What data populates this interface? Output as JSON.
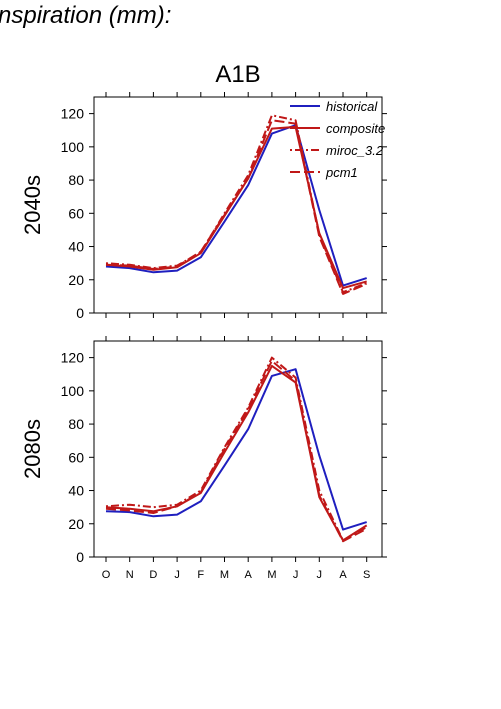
{
  "figure_title": "nspiration (mm):",
  "chart_data": {
    "type": "line",
    "title": "A1B",
    "categories": [
      "O",
      "N",
      "D",
      "J",
      "F",
      "M",
      "A",
      "M",
      "J",
      "J",
      "A",
      "S"
    ],
    "ylim": [
      0,
      130
    ],
    "yticks": [
      0,
      20,
      40,
      60,
      80,
      100,
      120
    ],
    "legend": {
      "placement": "top-right",
      "entries": [
        "historical",
        "composite",
        "miroc_3.2",
        "pcm1"
      ]
    },
    "colors": {
      "historical": "#1f1fbf",
      "composite": "#c01818",
      "miroc_3.2": "#c01818",
      "pcm1": "#c01818"
    },
    "panels": [
      {
        "label": "2040s",
        "series": [
          {
            "name": "historical",
            "values": [
              28,
              27,
              24.5,
              25.5,
              33.5,
              55,
              77,
              108,
              113,
              62,
              16.5,
              21
            ]
          },
          {
            "name": "composite",
            "values": [
              29,
              28,
              26,
              27.5,
              36,
              58.5,
              81,
              111,
              112,
              48,
              15,
              19
            ]
          },
          {
            "name": "miroc_3.2",
            "values": [
              30,
              29,
              27,
              28.5,
              36.5,
              60,
              83,
              119,
              116,
              47,
              12.5,
              18
            ]
          },
          {
            "name": "pcm1",
            "values": [
              29,
              28.5,
              26.5,
              28,
              37,
              59,
              81,
              116,
              114,
              46,
              11.5,
              17.5
            ]
          }
        ]
      },
      {
        "label": "2080s",
        "series": [
          {
            "name": "historical",
            "values": [
              27.5,
              27,
              24.5,
              25.5,
              33.5,
              55,
              77,
              109,
              113,
              61,
              16.5,
              21
            ]
          },
          {
            "name": "composite",
            "values": [
              30,
              29,
              27.5,
              30.5,
              38.5,
              63,
              87,
              115,
              105,
              36,
              10,
              19
            ]
          },
          {
            "name": "miroc_3.2",
            "values": [
              30.5,
              31.5,
              30,
              31.5,
              40,
              66,
              90,
              120,
              108,
              40,
              10,
              18
            ]
          },
          {
            "name": "pcm1",
            "values": [
              29,
              28,
              26.5,
              30.5,
              39,
              65,
              89,
              118,
              106,
              37,
              9.5,
              17
            ]
          }
        ]
      }
    ]
  }
}
